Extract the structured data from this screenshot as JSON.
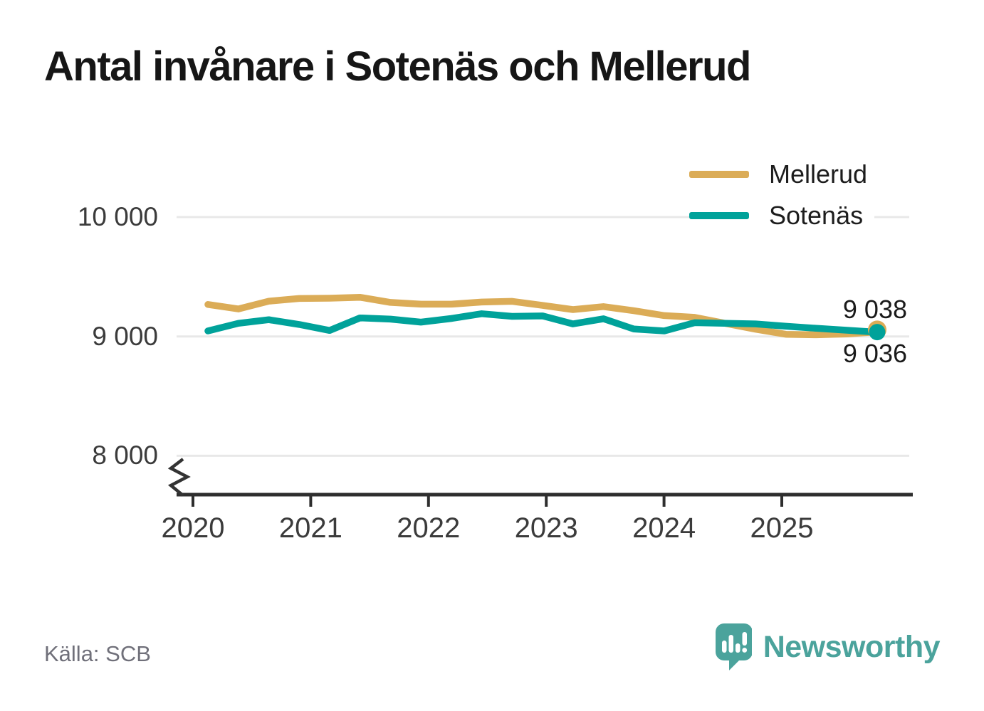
{
  "title": "Antal invånare i Sotenäs och Mellerud",
  "source_label": "Källa: SCB",
  "branding": {
    "name": "Newsworthy",
    "color": "#4BA39C",
    "icon": "speech-bubble-bar-chart"
  },
  "colors": {
    "mellerud": "#DBAC57",
    "sotenas": "#00A29A",
    "gridline": "#E8E8E8",
    "axis": "#2E2E2E",
    "axis_break": "#333333",
    "title_text": "#161616",
    "tick_text": "#3B3B3B",
    "label_text": "#1A1A1A",
    "source_text": "#70707A"
  },
  "chart_data": {
    "type": "line",
    "title": "Antal invånare i Sotenäs och Mellerud",
    "x": [
      "2020-Q1",
      "2020-Q2",
      "2020-Q3",
      "2020-Q4",
      "2021-Q1",
      "2021-Q2",
      "2021-Q3",
      "2021-Q4",
      "2022-Q1",
      "2022-Q2",
      "2022-Q3",
      "2022-Q4",
      "2023-Q1",
      "2023-Q2",
      "2023-Q3",
      "2023-Q4",
      "2024-Q1",
      "2024-Q2",
      "2024-Q3",
      "2024-Q4",
      "2025-Q1",
      "2025-Q2",
      "2025-Q3"
    ],
    "series": [
      {
        "name": "Mellerud",
        "color": "#DBAC57",
        "values": [
          9268,
          9230,
          9295,
          9318,
          9320,
          9328,
          9285,
          9270,
          9270,
          9288,
          9294,
          9260,
          9225,
          9250,
          9215,
          9175,
          9160,
          9110,
          9060,
          9018,
          9014,
          9020,
          9038
        ],
        "end_value": 9038,
        "end_label": "9 038"
      },
      {
        "name": "Sotenäs",
        "color": "#00A29A",
        "values": [
          9046,
          9110,
          9140,
          9100,
          9050,
          9155,
          9145,
          9120,
          9150,
          9190,
          9168,
          9172,
          9105,
          9148,
          9062,
          9046,
          9115,
          9110,
          9105,
          9085,
          9068,
          9052,
          9036
        ],
        "end_value": 9036,
        "end_label": "9 036"
      }
    ],
    "yticks": [
      {
        "value": 10000,
        "label": "10 000"
      },
      {
        "value": 9000,
        "label": "9 000"
      },
      {
        "value": 8000,
        "label": "8 000"
      }
    ],
    "xticks": [
      {
        "value": 2020,
        "label": "2020"
      },
      {
        "value": 2021,
        "label": "2021"
      },
      {
        "value": 2022,
        "label": "2022"
      },
      {
        "value": 2023,
        "label": "2023"
      },
      {
        "value": 2024,
        "label": "2024"
      },
      {
        "value": 2025,
        "label": "2025"
      }
    ],
    "ylim_display": [
      8000,
      10000
    ],
    "axis_break": true,
    "grid": "horizontal",
    "legend_position": "top-right"
  }
}
